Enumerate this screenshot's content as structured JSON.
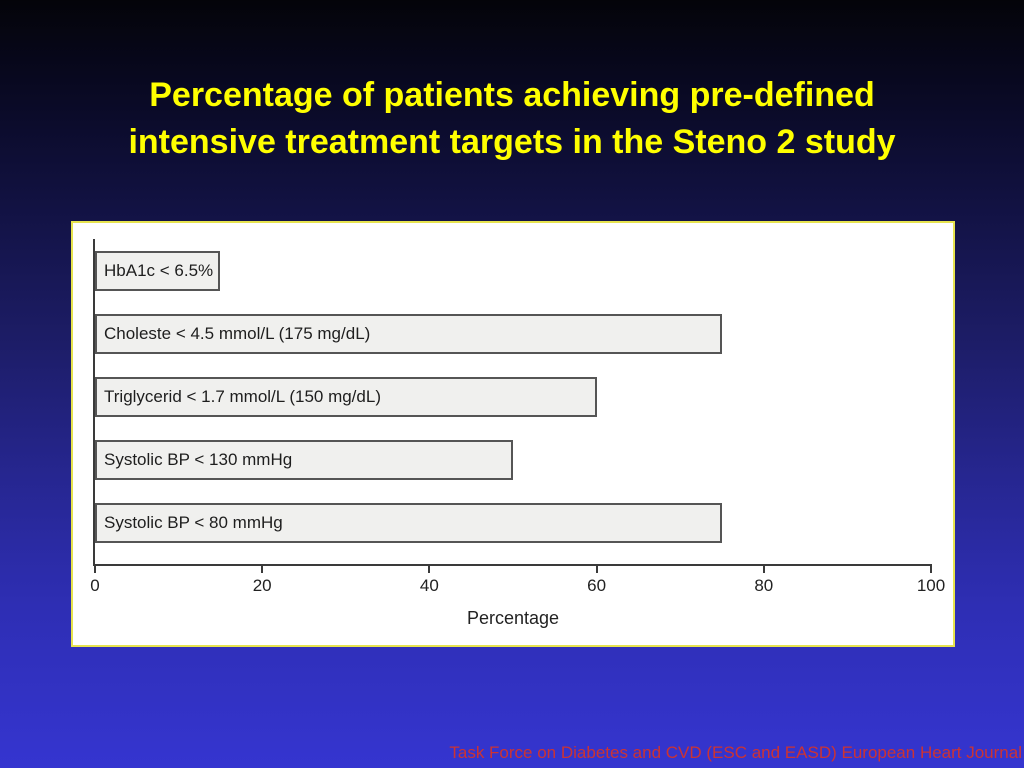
{
  "slide": {
    "title_line1": "Percentage of patients achieving pre-defined",
    "title_line2": "intensive treatment targets in the Steno 2 study",
    "footer": "Task Force on Diabetes and CVD (ESC and EASD) European Heart Journal"
  },
  "colors": {
    "title_text": "#ffff00",
    "footer_text": "#cc3333",
    "background_top": "#040409",
    "background_bottom": "#3535d0",
    "panel_background": "#ffffff",
    "panel_border": "#e6e34f",
    "bar_fill": "#f0f0ee",
    "bar_border": "#555555",
    "axis": "#3a3a3a"
  },
  "chart_data": {
    "type": "bar",
    "orientation": "horizontal",
    "categories": [
      "HbA1c < 6.5%",
      "Choleste < 4.5 mmol/L (175 mg/dL)",
      "Triglycerid < 1.7 mmol/L (150 mg/dL)",
      "Systolic BP < 130 mmHg",
      "Systolic BP < 80 mmHg"
    ],
    "values": [
      15,
      75,
      60,
      50,
      75
    ],
    "title": "",
    "xlabel": "Percentage",
    "ylabel": "",
    "xlim": [
      0,
      100
    ],
    "xticks": [
      0,
      20,
      40,
      60,
      80,
      100
    ],
    "grid": false,
    "legend": null,
    "labels_inside_bars": true
  }
}
